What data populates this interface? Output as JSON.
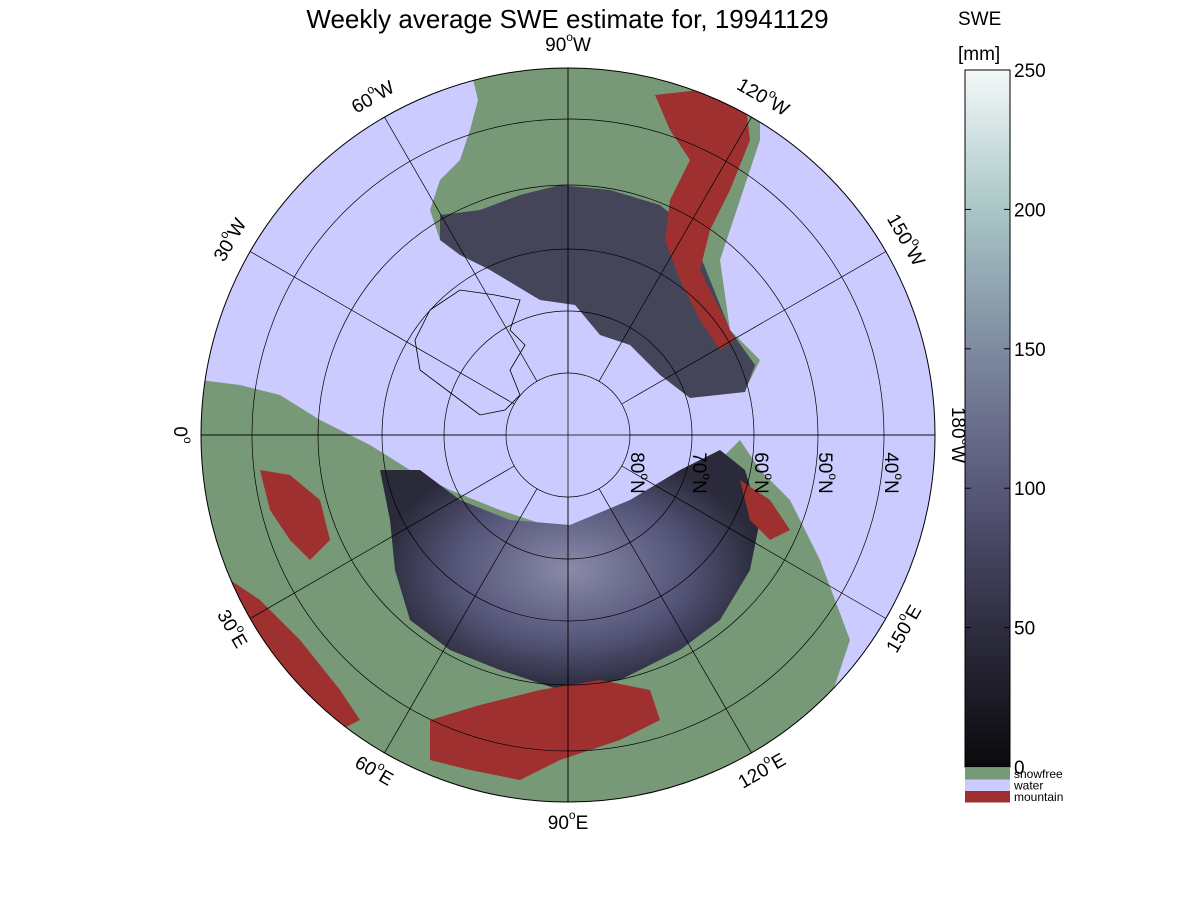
{
  "title": "Weekly average SWE estimate for, 19941129",
  "colorbar": {
    "label_line1": "SWE",
    "label_line2": "[mm]",
    "ticks": [
      0,
      50,
      100,
      150,
      200,
      250
    ],
    "range": [
      0,
      250
    ],
    "gradient_stops": [
      "#0a0a0c",
      "#2e2d40",
      "#58587a",
      "#7e8aa0",
      "#a9c6c6",
      "#f4f8f8"
    ],
    "categories": [
      {
        "label": "snowfree",
        "color": "#779977"
      },
      {
        "label": "water",
        "color": "#cccbff"
      },
      {
        "label": "mountain",
        "color": "#9e3030"
      }
    ]
  },
  "map": {
    "projection": "north polar stereographic",
    "longitude_labels": [
      {
        "text": "90",
        "sup": "o",
        "suffix": "W"
      },
      {
        "text": "120",
        "sup": "o",
        "suffix": "W"
      },
      {
        "text": "150",
        "sup": "o",
        "suffix": "W"
      },
      {
        "text": "180",
        "sup": "o",
        "suffix": "W"
      },
      {
        "text": "150",
        "sup": "o",
        "suffix": "E"
      },
      {
        "text": "120",
        "sup": "o",
        "suffix": "E"
      },
      {
        "text": "90",
        "sup": "o",
        "suffix": "E"
      },
      {
        "text": "60",
        "sup": "o",
        "suffix": "E"
      },
      {
        "text": "30",
        "sup": "o",
        "suffix": "E"
      },
      {
        "text": "0",
        "sup": "o",
        "suffix": ""
      },
      {
        "text": "30",
        "sup": "o",
        "suffix": "W"
      },
      {
        "text": "60",
        "sup": "o",
        "suffix": "W"
      }
    ],
    "latitude_labels": [
      {
        "text": "80",
        "sup": "o",
        "suffix": "N"
      },
      {
        "text": "70",
        "sup": "o",
        "suffix": "N"
      },
      {
        "text": "60",
        "sup": "o",
        "suffix": "N"
      },
      {
        "text": "50",
        "sup": "o",
        "suffix": "N"
      },
      {
        "text": "40",
        "sup": "o",
        "suffix": "N"
      }
    ],
    "colors": {
      "water": "#cccbff",
      "snowfree": "#779977",
      "mountain": "#9e3030",
      "snow_dark": "#24232f",
      "snow_mid": "#45455a",
      "snow_light": "#6c6c8a",
      "grid": "#000000"
    }
  }
}
